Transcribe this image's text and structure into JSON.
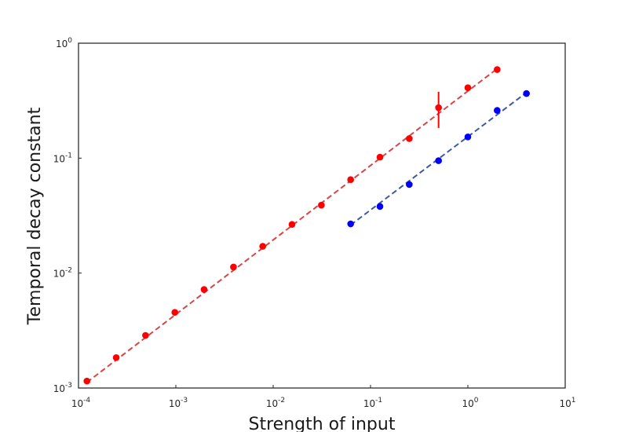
{
  "chart_data": {
    "type": "scatter",
    "title": "",
    "xlabel": "Strength of input",
    "ylabel": "Temporal decay constant",
    "xscale": "log",
    "yscale": "log",
    "xlim": [
      0.0001,
      10
    ],
    "ylim": [
      0.001,
      1
    ],
    "grid": false,
    "x_ticks": [
      {
        "base": "10",
        "exp": "-4"
      },
      {
        "base": "10",
        "exp": "-3"
      },
      {
        "base": "10",
        "exp": "-2"
      },
      {
        "base": "10",
        "exp": "-1"
      },
      {
        "base": "10",
        "exp": "0"
      },
      {
        "base": "10",
        "exp": "1"
      }
    ],
    "y_ticks": [
      {
        "base": "10",
        "exp": "-3"
      },
      {
        "base": "10",
        "exp": "-2"
      },
      {
        "base": "10",
        "exp": "-1"
      },
      {
        "base": "10",
        "exp": "0"
      }
    ],
    "series": [
      {
        "color": "#ff0000",
        "fit_color": "#d94545",
        "x": [
          0.000122,
          0.000244,
          0.000488,
          0.000977,
          0.00195,
          0.00391,
          0.00781,
          0.0156,
          0.03125,
          0.0625,
          0.125,
          0.25,
          0.5,
          1,
          2
        ],
        "y": [
          0.00115,
          0.00184,
          0.00287,
          0.00455,
          0.0072,
          0.0113,
          0.0171,
          0.0265,
          0.039,
          0.065,
          0.102,
          0.148,
          0.275,
          0.41,
          0.59
        ],
        "err_low": [
          null,
          null,
          null,
          null,
          null,
          null,
          null,
          null,
          null,
          null,
          null,
          null,
          0.183,
          null,
          null
        ],
        "err_high": [
          null,
          null,
          null,
          null,
          null,
          null,
          null,
          null,
          null,
          null,
          null,
          null,
          0.378,
          null,
          null
        ],
        "fit_x": [
          0.000122,
          2
        ],
        "fit_y": [
          0.00112,
          0.6
        ]
      },
      {
        "color": "#0000ff",
        "fit_color": "#3c5aa0",
        "x": [
          0.0625,
          0.125,
          0.25,
          0.5,
          1,
          2,
          4
        ],
        "y": [
          0.0268,
          0.038,
          0.059,
          0.095,
          0.153,
          0.26,
          0.365
        ],
        "fit_x": [
          0.0625,
          4
        ],
        "fit_y": [
          0.0262,
          0.372
        ]
      }
    ]
  }
}
